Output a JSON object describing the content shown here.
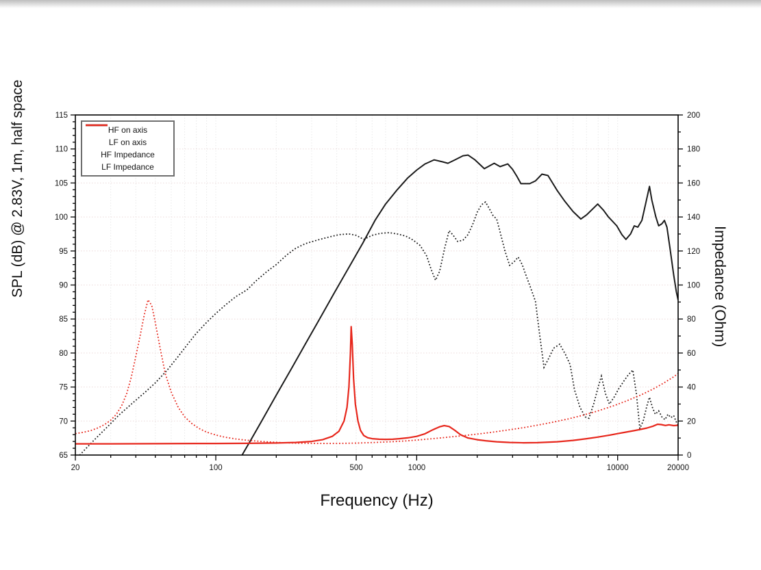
{
  "chart_data": {
    "type": "line",
    "title": "",
    "xlabel": "Frequency (Hz)",
    "ylabel_left": "SPL (dB) @ 2.83V, 1m, half space",
    "ylabel_right": "Impedance (Ohm)",
    "x_scale": "log",
    "xlim": [
      20,
      20000
    ],
    "ylim_left": [
      65,
      115
    ],
    "ylim_right": [
      0,
      200
    ],
    "x_major_ticks": [
      {
        "value": 20,
        "label": "20"
      },
      {
        "value": 100,
        "label": "100"
      },
      {
        "value": 500,
        "label": "500"
      },
      {
        "value": 1000,
        "label": "1000"
      },
      {
        "value": 10000,
        "label": "10000"
      },
      {
        "value": 20000,
        "label": "20000"
      }
    ],
    "x_minor_ticks": [
      30,
      40,
      50,
      60,
      70,
      80,
      90,
      200,
      300,
      400,
      600,
      700,
      800,
      900,
      2000,
      3000,
      4000,
      5000,
      6000,
      7000,
      8000,
      9000
    ],
    "y_left_ticks": [
      65,
      70,
      75,
      80,
      85,
      90,
      95,
      100,
      105,
      110,
      115
    ],
    "y_left_minor_step": 1,
    "y_right_ticks": [
      0,
      20,
      40,
      60,
      80,
      100,
      120,
      140,
      160,
      180,
      200
    ],
    "y_right_minor_step": 10,
    "grid": {
      "horizontal": true,
      "vertical": true,
      "h_color": "#ecd9d9",
      "v_color": "#e8e8e8"
    },
    "legend_position": "top-left",
    "colors": {
      "black": "#1a1a1a",
      "red": "#e7261b"
    },
    "series": [
      {
        "name": "HF on axis",
        "axis": "left",
        "color": "#1a1a1a",
        "style": "solid",
        "width": 2,
        "points": [
          [
            134,
            64.8
          ],
          [
            150,
            67.3
          ],
          [
            170,
            70.1
          ],
          [
            200,
            73.8
          ],
          [
            240,
            77.9
          ],
          [
            280,
            81.4
          ],
          [
            330,
            85.1
          ],
          [
            390,
            88.9
          ],
          [
            460,
            92.6
          ],
          [
            540,
            96.2
          ],
          [
            620,
            99.5
          ],
          [
            700,
            101.9
          ],
          [
            800,
            104.0
          ],
          [
            900,
            105.7
          ],
          [
            1000,
            106.9
          ],
          [
            1100,
            107.8
          ],
          [
            1220,
            108.4
          ],
          [
            1350,
            108.1
          ],
          [
            1430,
            107.9
          ],
          [
            1550,
            108.4
          ],
          [
            1700,
            109.0
          ],
          [
            1800,
            109.1
          ],
          [
            1950,
            108.4
          ],
          [
            2170,
            107.1
          ],
          [
            2430,
            107.9
          ],
          [
            2600,
            107.4
          ],
          [
            2840,
            107.8
          ],
          [
            3000,
            107.0
          ],
          [
            3150,
            106.0
          ],
          [
            3300,
            104.9
          ],
          [
            3650,
            104.9
          ],
          [
            3900,
            105.3
          ],
          [
            4200,
            106.3
          ],
          [
            4500,
            106.1
          ],
          [
            5000,
            103.9
          ],
          [
            5430,
            102.4
          ],
          [
            6000,
            100.8
          ],
          [
            6560,
            99.7
          ],
          [
            7000,
            100.3
          ],
          [
            7960,
            101.9
          ],
          [
            8500,
            101.0
          ],
          [
            9000,
            100.0
          ],
          [
            9900,
            98.7
          ],
          [
            10500,
            97.4
          ],
          [
            11000,
            96.7
          ],
          [
            11600,
            97.5
          ],
          [
            12100,
            98.7
          ],
          [
            12600,
            98.5
          ],
          [
            13200,
            99.5
          ],
          [
            13800,
            102.0
          ],
          [
            14400,
            104.5
          ],
          [
            14800,
            102.5
          ],
          [
            15500,
            100.0
          ],
          [
            16000,
            98.7
          ],
          [
            16600,
            99.0
          ],
          [
            17100,
            99.5
          ],
          [
            17600,
            98.5
          ],
          [
            18200,
            95.5
          ],
          [
            19000,
            91.5
          ],
          [
            19600,
            89.0
          ],
          [
            20000,
            87.8
          ]
        ]
      },
      {
        "name": "LF on axis",
        "axis": "left",
        "color": "#1a1a1a",
        "style": "dotted",
        "width": 1.8,
        "points": [
          [
            20,
            64.3
          ],
          [
            22,
            65.6
          ],
          [
            25,
            67.3
          ],
          [
            29,
            69.2
          ],
          [
            33,
            70.9
          ],
          [
            38,
            72.5
          ],
          [
            44,
            74.1
          ],
          [
            50,
            75.6
          ],
          [
            57,
            77.4
          ],
          [
            65,
            79.5
          ],
          [
            72,
            81.2
          ],
          [
            80,
            82.9
          ],
          [
            90,
            84.5
          ],
          [
            100,
            85.8
          ],
          [
            112,
            87.1
          ],
          [
            126,
            88.3
          ],
          [
            143,
            89.3
          ],
          [
            160,
            90.7
          ],
          [
            180,
            92.0
          ],
          [
            200,
            93.0
          ],
          [
            225,
            94.4
          ],
          [
            250,
            95.4
          ],
          [
            280,
            96.1
          ],
          [
            320,
            96.6
          ],
          [
            360,
            97.0
          ],
          [
            410,
            97.4
          ],
          [
            460,
            97.5
          ],
          [
            500,
            97.3
          ],
          [
            545,
            96.7
          ],
          [
            600,
            97.3
          ],
          [
            660,
            97.6
          ],
          [
            730,
            97.7
          ],
          [
            800,
            97.5
          ],
          [
            880,
            97.2
          ],
          [
            960,
            96.6
          ],
          [
            1040,
            95.8
          ],
          [
            1120,
            94.3
          ],
          [
            1180,
            92.3
          ],
          [
            1240,
            90.7
          ],
          [
            1300,
            92.0
          ],
          [
            1380,
            95.5
          ],
          [
            1450,
            98.0
          ],
          [
            1520,
            97.3
          ],
          [
            1600,
            96.4
          ],
          [
            1700,
            96.6
          ],
          [
            1800,
            97.4
          ],
          [
            1900,
            98.9
          ],
          [
            2000,
            100.7
          ],
          [
            2100,
            101.8
          ],
          [
            2200,
            102.2
          ],
          [
            2300,
            101.2
          ],
          [
            2400,
            100.2
          ],
          [
            2500,
            99.7
          ],
          [
            2600,
            97.8
          ],
          [
            2750,
            95.0
          ],
          [
            2900,
            92.9
          ],
          [
            3050,
            93.4
          ],
          [
            3200,
            94.1
          ],
          [
            3350,
            93.0
          ],
          [
            3500,
            91.4
          ],
          [
            3700,
            89.5
          ],
          [
            3900,
            87.6
          ],
          [
            4100,
            82.5
          ],
          [
            4300,
            77.9
          ],
          [
            4500,
            79.0
          ],
          [
            4800,
            80.7
          ],
          [
            5150,
            81.3
          ],
          [
            5500,
            79.8
          ],
          [
            5800,
            78.3
          ],
          [
            6100,
            74.6
          ],
          [
            6500,
            72.0
          ],
          [
            6900,
            70.6
          ],
          [
            7200,
            70.4
          ],
          [
            7600,
            72.5
          ],
          [
            8000,
            75.0
          ],
          [
            8300,
            76.6
          ],
          [
            8700,
            74.0
          ],
          [
            9100,
            72.5
          ],
          [
            9600,
            73.5
          ],
          [
            10100,
            74.7
          ],
          [
            10700,
            75.8
          ],
          [
            11300,
            76.8
          ],
          [
            11900,
            77.5
          ],
          [
            12400,
            74.0
          ],
          [
            12900,
            68.9
          ],
          [
            13400,
            70.0
          ],
          [
            14000,
            72.3
          ],
          [
            14400,
            73.5
          ],
          [
            14900,
            72.0
          ],
          [
            15400,
            71.0
          ],
          [
            16000,
            71.5
          ],
          [
            16600,
            70.6
          ],
          [
            17200,
            70.2
          ],
          [
            17800,
            71.0
          ],
          [
            18400,
            70.5
          ],
          [
            19000,
            70.8
          ],
          [
            19500,
            70.0
          ],
          [
            20000,
            69.3
          ]
        ]
      },
      {
        "name": "HF Impedance",
        "axis": "right",
        "color": "#e7261b",
        "style": "solid",
        "width": 2.2,
        "points": [
          [
            20,
            6.6
          ],
          [
            30,
            6.6
          ],
          [
            50,
            6.7
          ],
          [
            80,
            6.8
          ],
          [
            100,
            6.8
          ],
          [
            140,
            6.9
          ],
          [
            200,
            7.1
          ],
          [
            250,
            7.4
          ],
          [
            300,
            8.0
          ],
          [
            340,
            9.0
          ],
          [
            380,
            11.0
          ],
          [
            410,
            14.0
          ],
          [
            435,
            20.0
          ],
          [
            450,
            28
          ],
          [
            460,
            40
          ],
          [
            468,
            60
          ],
          [
            472,
            75.5
          ],
          [
            478,
            65
          ],
          [
            485,
            45
          ],
          [
            495,
            30
          ],
          [
            510,
            20
          ],
          [
            525,
            14.5
          ],
          [
            545,
            11.5
          ],
          [
            570,
            10.2
          ],
          [
            600,
            9.6
          ],
          [
            650,
            9.3
          ],
          [
            700,
            9.2
          ],
          [
            760,
            9.3
          ],
          [
            820,
            9.6
          ],
          [
            900,
            10.1
          ],
          [
            1000,
            11.0
          ],
          [
            1100,
            12.5
          ],
          [
            1200,
            14.8
          ],
          [
            1300,
            16.6
          ],
          [
            1370,
            17.3
          ],
          [
            1450,
            16.8
          ],
          [
            1550,
            14.5
          ],
          [
            1650,
            12.0
          ],
          [
            1800,
            10.0
          ],
          [
            2000,
            9.0
          ],
          [
            2200,
            8.4
          ],
          [
            2500,
            7.8
          ],
          [
            2900,
            7.4
          ],
          [
            3400,
            7.2
          ],
          [
            4000,
            7.3
          ],
          [
            5000,
            7.8
          ],
          [
            6000,
            8.6
          ],
          [
            7000,
            9.6
          ],
          [
            8000,
            10.6
          ],
          [
            9000,
            11.6
          ],
          [
            10000,
            12.6
          ],
          [
            11000,
            13.5
          ],
          [
            12000,
            14.3
          ],
          [
            13000,
            15.1
          ],
          [
            14000,
            15.9
          ],
          [
            15000,
            17.0
          ],
          [
            15800,
            18.1
          ],
          [
            16500,
            17.9
          ],
          [
            17300,
            17.4
          ],
          [
            18000,
            17.8
          ],
          [
            19000,
            17.3
          ],
          [
            20000,
            17.5
          ]
        ]
      },
      {
        "name": "LF Impedance",
        "axis": "right",
        "color": "#e7261b",
        "style": "dotted",
        "width": 1.8,
        "points": [
          [
            20,
            12.6
          ],
          [
            22,
            13.4
          ],
          [
            24,
            14.5
          ],
          [
            26,
            16.0
          ],
          [
            28,
            18.0
          ],
          [
            30,
            20.5
          ],
          [
            32,
            24
          ],
          [
            34,
            29
          ],
          [
            36,
            36
          ],
          [
            38,
            46
          ],
          [
            40,
            58
          ],
          [
            42,
            70
          ],
          [
            44,
            82
          ],
          [
            46,
            91.3
          ],
          [
            48,
            88
          ],
          [
            50,
            78
          ],
          [
            53,
            62
          ],
          [
            56,
            48
          ],
          [
            60,
            37
          ],
          [
            65,
            28
          ],
          [
            70,
            22.5
          ],
          [
            76,
            18.5
          ],
          [
            83,
            15.5
          ],
          [
            90,
            13.5
          ],
          [
            100,
            11.8
          ],
          [
            110,
            10.6
          ],
          [
            125,
            9.5
          ],
          [
            140,
            8.8
          ],
          [
            160,
            8.2
          ],
          [
            185,
            7.7
          ],
          [
            215,
            7.3
          ],
          [
            250,
            7.0
          ],
          [
            300,
            6.9
          ],
          [
            360,
            6.8
          ],
          [
            430,
            6.9
          ],
          [
            520,
            7.1
          ],
          [
            620,
            7.4
          ],
          [
            740,
            7.8
          ],
          [
            880,
            8.3
          ],
          [
            1000,
            8.8
          ],
          [
            1200,
            9.6
          ],
          [
            1400,
            10.4
          ],
          [
            1700,
            11.4
          ],
          [
            2000,
            12.3
          ],
          [
            2400,
            13.5
          ],
          [
            2900,
            14.9
          ],
          [
            3400,
            16.1
          ],
          [
            4000,
            17.6
          ],
          [
            4800,
            19.4
          ],
          [
            5700,
            21.3
          ],
          [
            6800,
            23.6
          ],
          [
            8000,
            26.0
          ],
          [
            9500,
            28.9
          ],
          [
            11000,
            31.7
          ],
          [
            13000,
            35.2
          ],
          [
            15000,
            38.8
          ],
          [
            17000,
            42.4
          ],
          [
            19000,
            46.0
          ],
          [
            20000,
            48.0
          ]
        ]
      }
    ]
  }
}
